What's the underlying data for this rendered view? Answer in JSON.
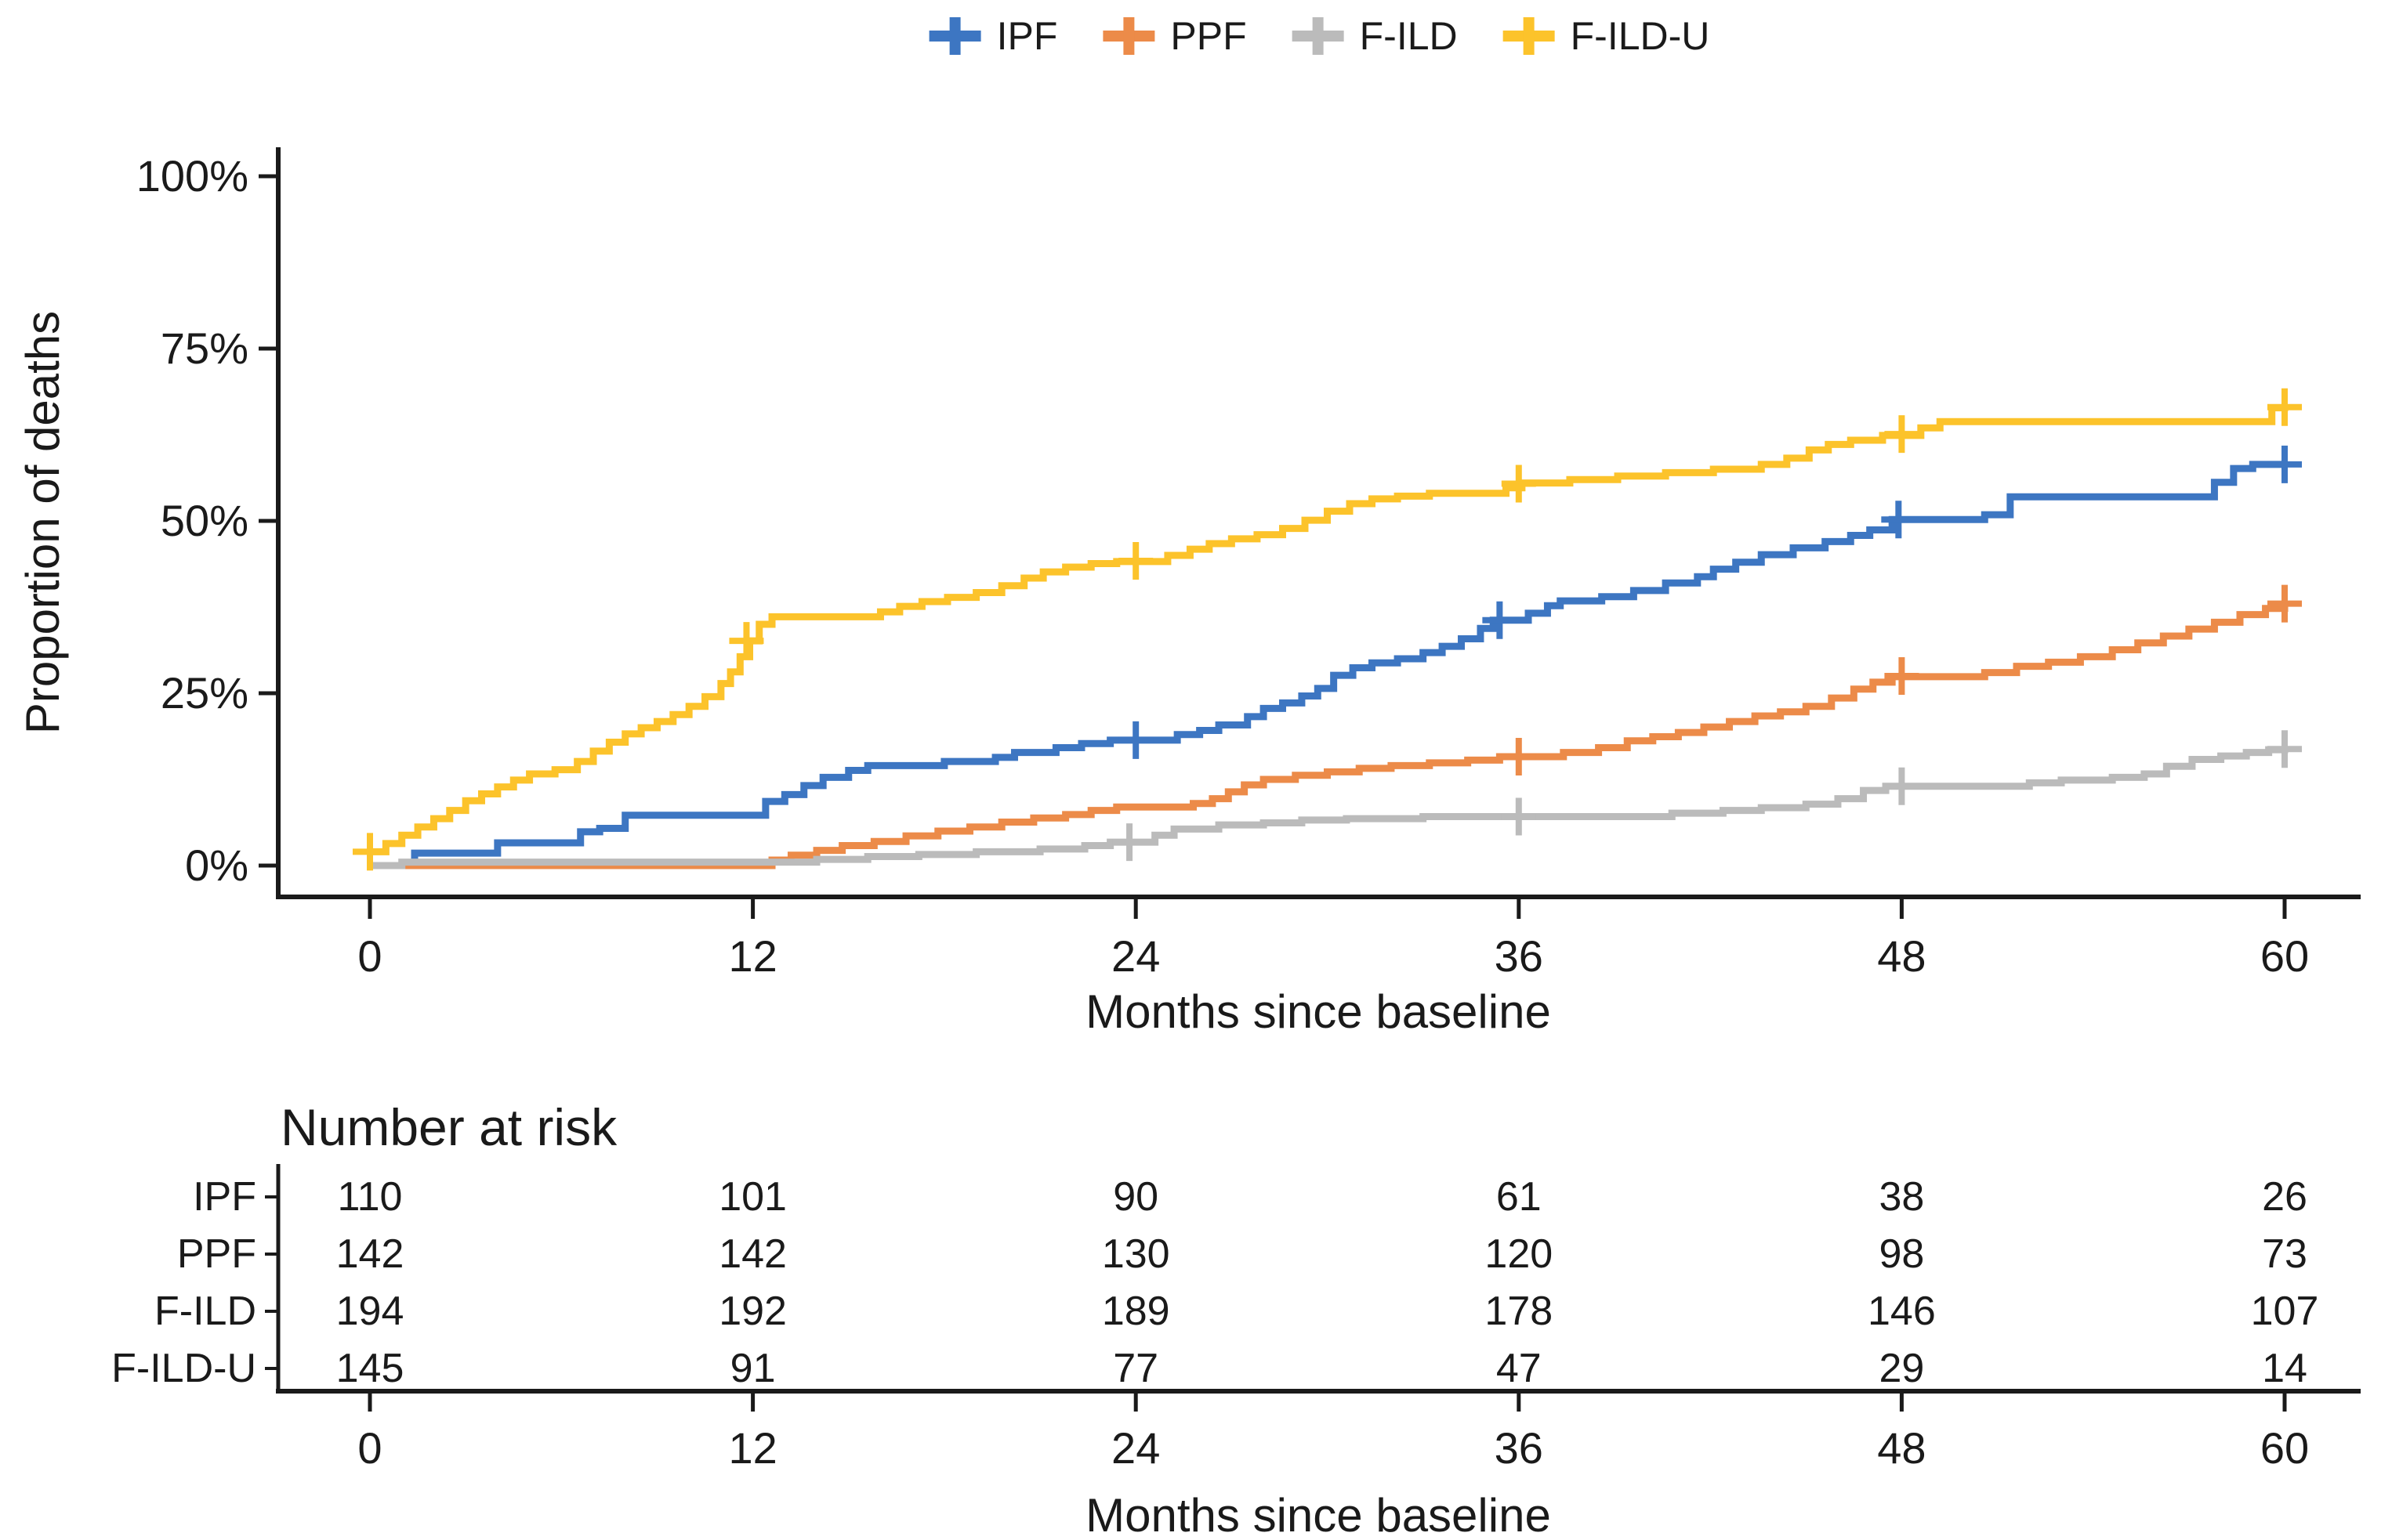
{
  "figure": {
    "background": "#ffffff",
    "text_color": "#1a1a1a",
    "axis_color": "#1a1a1a"
  },
  "legend": {
    "items": [
      {
        "label": "IPF",
        "color": "#3D76C2"
      },
      {
        "label": "PPF",
        "color": "#EC8B49"
      },
      {
        "label": "F-ILD",
        "color": "#BBBBBB"
      },
      {
        "label": "F-ILD-U",
        "color": "#FCC32B"
      }
    ]
  },
  "chart_data": {
    "type": "line",
    "subtype": "kaplan-meier-step",
    "title": "",
    "xlabel": "Months since baseline",
    "ylabel": "Proportion of deaths",
    "xlim": [
      0,
      60
    ],
    "ylim": [
      0,
      100
    ],
    "x_ticks": [
      0,
      12,
      24,
      36,
      48,
      60
    ],
    "y_ticks": [
      {
        "value": 0,
        "label": "0%"
      },
      {
        "value": 25,
        "label": "25%"
      },
      {
        "value": 50,
        "label": "50%"
      },
      {
        "value": 75,
        "label": "75%"
      },
      {
        "value": 100,
        "label": "100%"
      }
    ],
    "grid": false,
    "legend_position": "top-center",
    "series": [
      {
        "name": "IPF",
        "color": "#3D76C2",
        "points": [
          [
            0,
            0
          ],
          [
            1.4,
            1.8
          ],
          [
            4,
            3.3
          ],
          [
            6.6,
            4.9
          ],
          [
            7.2,
            5.4
          ],
          [
            8,
            7.3
          ],
          [
            12.4,
            9.3
          ],
          [
            13,
            10.3
          ],
          [
            13.6,
            11.6
          ],
          [
            14.2,
            12.8
          ],
          [
            15,
            13.8
          ],
          [
            15.6,
            14.5
          ],
          [
            18,
            15.1
          ],
          [
            19.6,
            15.7
          ],
          [
            20.2,
            16.4
          ],
          [
            21.5,
            17.1
          ],
          [
            22.3,
            17.7
          ],
          [
            23.2,
            18.2
          ],
          [
            25.3,
            19
          ],
          [
            26,
            19.6
          ],
          [
            26.6,
            20.4
          ],
          [
            27.5,
            21.6
          ],
          [
            28,
            22.8
          ],
          [
            28.6,
            23.6
          ],
          [
            29.2,
            24.6
          ],
          [
            29.7,
            25.7
          ],
          [
            30.2,
            27.6
          ],
          [
            30.8,
            28.7
          ],
          [
            31.4,
            29.4
          ],
          [
            32.2,
            30
          ],
          [
            33,
            30.9
          ],
          [
            33.6,
            31.8
          ],
          [
            34.2,
            32.9
          ],
          [
            34.8,
            34.4
          ],
          [
            35.2,
            35.6
          ],
          [
            36.3,
            36.6
          ],
          [
            36.9,
            37.7
          ],
          [
            37.3,
            38.4
          ],
          [
            38.6,
            39
          ],
          [
            39.6,
            39.9
          ],
          [
            40.6,
            41
          ],
          [
            41.6,
            41.9
          ],
          [
            42.1,
            43
          ],
          [
            42.8,
            44
          ],
          [
            43.6,
            45.1
          ],
          [
            44.6,
            46.1
          ],
          [
            45.6,
            47
          ],
          [
            46.4,
            47.9
          ],
          [
            47,
            48.7
          ],
          [
            47.7,
            50.2
          ],
          [
            50.6,
            50.9
          ],
          [
            51.4,
            53.5
          ],
          [
            57.8,
            55.6
          ],
          [
            58.4,
            57.6
          ],
          [
            59,
            58.2
          ],
          [
            60,
            58.2
          ]
        ],
        "censor_marks": [
          [
            24,
            18.2
          ],
          [
            35.4,
            35.6
          ],
          [
            47.9,
            50.2
          ],
          [
            60,
            58.2
          ]
        ]
      },
      {
        "name": "PPF",
        "color": "#EC8B49",
        "points": [
          [
            0,
            0
          ],
          [
            12.6,
            0.8
          ],
          [
            13.2,
            1.5
          ],
          [
            14,
            2.2
          ],
          [
            14.8,
            2.9
          ],
          [
            15.8,
            3.5
          ],
          [
            16.8,
            4.3
          ],
          [
            17.8,
            5
          ],
          [
            18.8,
            5.6
          ],
          [
            19.8,
            6.3
          ],
          [
            20.8,
            6.9
          ],
          [
            21.8,
            7.4
          ],
          [
            22.6,
            8
          ],
          [
            23.4,
            8.5
          ],
          [
            25.8,
            9
          ],
          [
            26.4,
            9.7
          ],
          [
            26.9,
            10.7
          ],
          [
            27.4,
            11.7
          ],
          [
            28,
            12.5
          ],
          [
            29,
            13.1
          ],
          [
            30,
            13.6
          ],
          [
            31,
            14.1
          ],
          [
            32,
            14.5
          ],
          [
            33.2,
            14.9
          ],
          [
            34.4,
            15.3
          ],
          [
            35.4,
            15.8
          ],
          [
            37.4,
            16.4
          ],
          [
            38.5,
            17.1
          ],
          [
            39.4,
            18.1
          ],
          [
            40.2,
            18.7
          ],
          [
            41,
            19.3
          ],
          [
            41.8,
            20.1
          ],
          [
            42.6,
            20.9
          ],
          [
            43.4,
            21.7
          ],
          [
            44.2,
            22.3
          ],
          [
            45,
            23.1
          ],
          [
            45.8,
            24.3
          ],
          [
            46.5,
            25.6
          ],
          [
            47.1,
            26.6
          ],
          [
            47.7,
            27.4
          ],
          [
            50.6,
            28
          ],
          [
            51.6,
            28.9
          ],
          [
            52.6,
            29.5
          ],
          [
            53.6,
            30.3
          ],
          [
            54.6,
            31.3
          ],
          [
            55.4,
            32.3
          ],
          [
            56.2,
            33.3
          ],
          [
            57,
            34.3
          ],
          [
            57.8,
            35.3
          ],
          [
            58.6,
            36.4
          ],
          [
            59.4,
            37.3
          ],
          [
            60,
            38
          ]
        ],
        "censor_marks": [
          [
            36,
            15.8
          ],
          [
            48,
            27.5
          ],
          [
            60,
            38
          ]
        ]
      },
      {
        "name": "F-ILD",
        "color": "#BBBBBB",
        "points": [
          [
            0,
            0
          ],
          [
            1,
            0.5
          ],
          [
            14,
            0.9
          ],
          [
            15.6,
            1.3
          ],
          [
            17.2,
            1.6
          ],
          [
            19,
            2
          ],
          [
            21,
            2.4
          ],
          [
            22.4,
            2.9
          ],
          [
            23.2,
            3.4
          ],
          [
            24.6,
            4.4
          ],
          [
            25.2,
            5.3
          ],
          [
            26.6,
            5.9
          ],
          [
            28,
            6.2
          ],
          [
            29.2,
            6.6
          ],
          [
            30.6,
            6.8
          ],
          [
            33,
            7.1
          ],
          [
            40.8,
            7.6
          ],
          [
            42.4,
            8
          ],
          [
            43.6,
            8.4
          ],
          [
            45,
            8.9
          ],
          [
            46,
            9.7
          ],
          [
            46.8,
            10.9
          ],
          [
            47.5,
            11.5
          ],
          [
            52,
            12
          ],
          [
            53,
            12.4
          ],
          [
            54.6,
            12.8
          ],
          [
            55.6,
            13.3
          ],
          [
            56.3,
            14.4
          ],
          [
            57.1,
            15.4
          ],
          [
            58,
            15.9
          ],
          [
            58.8,
            16.4
          ],
          [
            59.5,
            16.8
          ],
          [
            60,
            16.9
          ]
        ],
        "censor_marks": [
          [
            23.8,
            3.4
          ],
          [
            36,
            7.1
          ],
          [
            48,
            11.5
          ],
          [
            60,
            16.9
          ]
        ]
      },
      {
        "name": "F-ILD-U",
        "color": "#FCC32B",
        "points": [
          [
            0,
            2
          ],
          [
            0.5,
            3.2
          ],
          [
            1,
            4.4
          ],
          [
            1.5,
            5.6
          ],
          [
            2,
            6.8
          ],
          [
            2.5,
            8
          ],
          [
            3,
            9.4
          ],
          [
            3.5,
            10.4
          ],
          [
            4,
            11.4
          ],
          [
            4.5,
            12.4
          ],
          [
            5,
            13.3
          ],
          [
            5.8,
            13.9
          ],
          [
            6.5,
            15.1
          ],
          [
            7,
            16.6
          ],
          [
            7.5,
            17.9
          ],
          [
            8,
            19.1
          ],
          [
            8.5,
            20
          ],
          [
            9,
            20.9
          ],
          [
            9.5,
            21.9
          ],
          [
            10,
            23.1
          ],
          [
            10.5,
            24.5
          ],
          [
            11,
            26.4
          ],
          [
            11.3,
            28.1
          ],
          [
            11.6,
            30.3
          ],
          [
            11.9,
            32.6
          ],
          [
            12.2,
            35
          ],
          [
            12.6,
            36.1
          ],
          [
            16,
            36.8
          ],
          [
            16.6,
            37.6
          ],
          [
            17.3,
            38.3
          ],
          [
            18.1,
            38.9
          ],
          [
            19,
            39.6
          ],
          [
            19.8,
            40.6
          ],
          [
            20.5,
            41.7
          ],
          [
            21.1,
            42.6
          ],
          [
            21.8,
            43.3
          ],
          [
            22.6,
            43.8
          ],
          [
            23.4,
            44.1
          ],
          [
            25,
            45
          ],
          [
            25.7,
            45.9
          ],
          [
            26.3,
            46.7
          ],
          [
            27,
            47.4
          ],
          [
            27.8,
            48
          ],
          [
            28.6,
            48.9
          ],
          [
            29.3,
            50.1
          ],
          [
            30,
            51.4
          ],
          [
            30.7,
            52.5
          ],
          [
            31.4,
            53.2
          ],
          [
            32.2,
            53.6
          ],
          [
            33.2,
            54
          ],
          [
            35.6,
            54.8
          ],
          [
            36.1,
            55.5
          ],
          [
            37.6,
            56
          ],
          [
            39.1,
            56.5
          ],
          [
            40.6,
            57
          ],
          [
            42.1,
            57.5
          ],
          [
            43.6,
            58.2
          ],
          [
            44.4,
            59.1
          ],
          [
            45.1,
            60.3
          ],
          [
            45.7,
            61.1
          ],
          [
            46.4,
            61.7
          ],
          [
            47.4,
            62.4
          ],
          [
            48.6,
            63.5
          ],
          [
            49.2,
            64.4
          ],
          [
            59.6,
            66.4
          ],
          [
            60,
            66.5
          ]
        ],
        "censor_marks": [
          [
            0,
            2
          ],
          [
            11.8,
            32.6
          ],
          [
            24,
            44.2
          ],
          [
            36,
            55.4
          ],
          [
            48,
            62.6
          ],
          [
            60,
            66.5
          ]
        ]
      }
    ]
  },
  "risk_table": {
    "title": "Number at risk",
    "xlabel": "Months since baseline",
    "months": [
      0,
      12,
      24,
      36,
      48,
      60
    ],
    "rows": [
      {
        "label": "IPF",
        "color": "#3D76C2",
        "values": [
          110,
          101,
          90,
          61,
          38,
          26
        ]
      },
      {
        "label": "PPF",
        "color": "#EC8B49",
        "values": [
          142,
          142,
          130,
          120,
          98,
          73
        ]
      },
      {
        "label": "F-ILD",
        "color": "#BBBBBB",
        "values": [
          194,
          192,
          189,
          178,
          146,
          107
        ]
      },
      {
        "label": "F-ILD-U",
        "color": "#FCC32B",
        "values": [
          145,
          91,
          77,
          47,
          29,
          14
        ]
      }
    ]
  }
}
